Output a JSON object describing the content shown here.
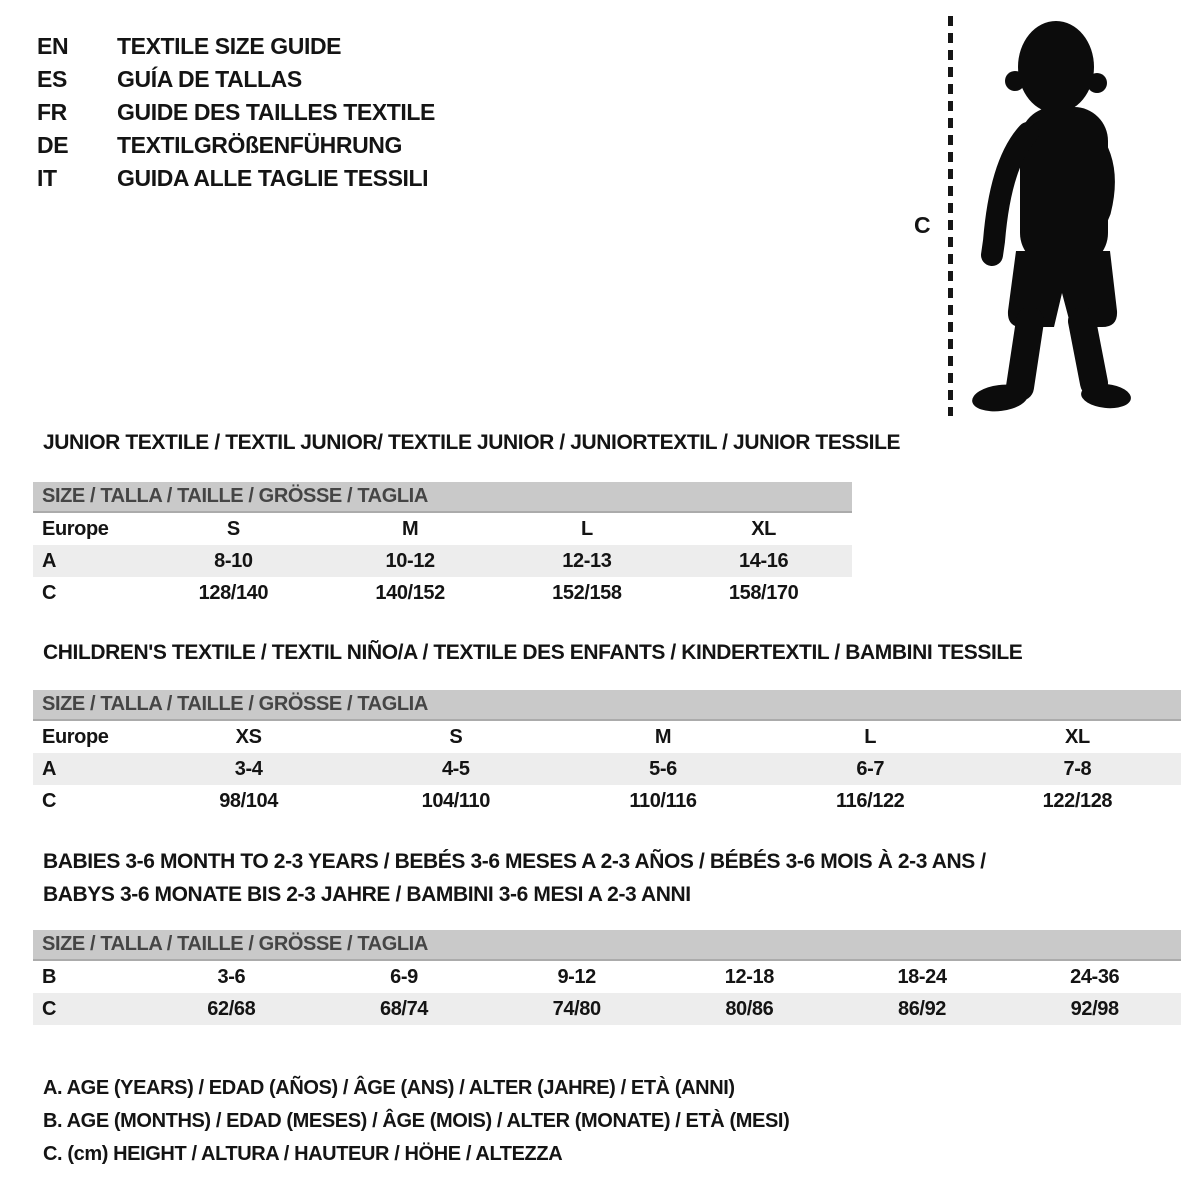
{
  "page": {
    "background": "#ffffff",
    "text_color": "#141414",
    "header_bar_color": "#c9c9c9",
    "shaded_row_color": "#ededed"
  },
  "languages": [
    {
      "code": "EN",
      "label": "TEXTILE SIZE GUIDE"
    },
    {
      "code": "ES",
      "label": "GUÍA DE TALLAS"
    },
    {
      "code": "FR",
      "label": "GUIDE DES TAILLES TEXTILE"
    },
    {
      "code": "DE",
      "label": "TEXTILGRÖßENFÜHRUNG"
    },
    {
      "code": "IT",
      "label": "GUIDA ALLE TAGLIE TESSILI"
    }
  ],
  "figure": {
    "measure_label": "C",
    "silhouette": "toddler-silhouette"
  },
  "sections": [
    {
      "id": "junior",
      "title_lines": [
        "JUNIOR TEXTILE / TEXTIL JUNIOR/ TEXTILE JUNIOR / JUNIORTEXTIL / JUNIOR TESSILE"
      ],
      "table_header": "SIZE / TALLA / TAILLE / GRÖSSE / TAGLIA",
      "rows": [
        {
          "label": "Europe",
          "shaded": false,
          "values": [
            "S",
            "M",
            "L",
            "XL"
          ]
        },
        {
          "label": "A",
          "shaded": true,
          "values": [
            "8-10",
            "10-12",
            "12-13",
            "14-16"
          ]
        },
        {
          "label": "C",
          "shaded": false,
          "values": [
            "128/140",
            "140/152",
            "152/158",
            "158/170"
          ]
        }
      ]
    },
    {
      "id": "children",
      "title_lines": [
        "CHILDREN'S TEXTILE / TEXTIL NIÑO/A / TEXTILE DES ENFANTS / KINDERTEXTIL / BAMBINI TESSILE"
      ],
      "table_header": "SIZE / TALLA / TAILLE / GRÖSSE / TAGLIA",
      "rows": [
        {
          "label": "Europe",
          "shaded": false,
          "values": [
            "XS",
            "S",
            "M",
            "L",
            "XL"
          ]
        },
        {
          "label": "A",
          "shaded": true,
          "values": [
            "3-4",
            "4-5",
            "5-6",
            "6-7",
            "7-8"
          ]
        },
        {
          "label": "C",
          "shaded": false,
          "values": [
            "98/104",
            "104/110",
            "110/116",
            "116/122",
            "122/128"
          ]
        }
      ]
    },
    {
      "id": "babies",
      "title_lines": [
        "BABIES 3-6 MONTH TO 2-3 YEARS / BEBÉS 3-6 MESES A 2-3 AÑOS / BÉBÉS 3-6 MOIS À 2-3 ANS /",
        "BABYS 3-6 MONATE BIS 2-3 JAHRE / BAMBINI 3-6 MESI A 2-3 ANNI"
      ],
      "table_header": "SIZE / TALLA / TAILLE / GRÖSSE / TAGLIA",
      "rows": [
        {
          "label": "B",
          "shaded": false,
          "values": [
            "3-6",
            "6-9",
            "9-12",
            "12-18",
            "18-24",
            "24-36"
          ]
        },
        {
          "label": "C",
          "shaded": true,
          "values": [
            "62/68",
            "68/74",
            "74/80",
            "80/86",
            "86/92",
            "92/98"
          ]
        }
      ]
    }
  ],
  "legend": [
    "A. AGE (YEARS) / EDAD (AÑOS) / ÂGE (ANS) / ALTER (JAHRE) / ETÀ (ANNI)",
    "B. AGE (MONTHS) / EDAD (MESES) / ÂGE (MOIS) / ALTER (MONATE) / ETÀ (MESI)",
    "C. (cm) HEIGHT / ALTURA / HAUTEUR / HÖHE / ALTEZZA"
  ]
}
